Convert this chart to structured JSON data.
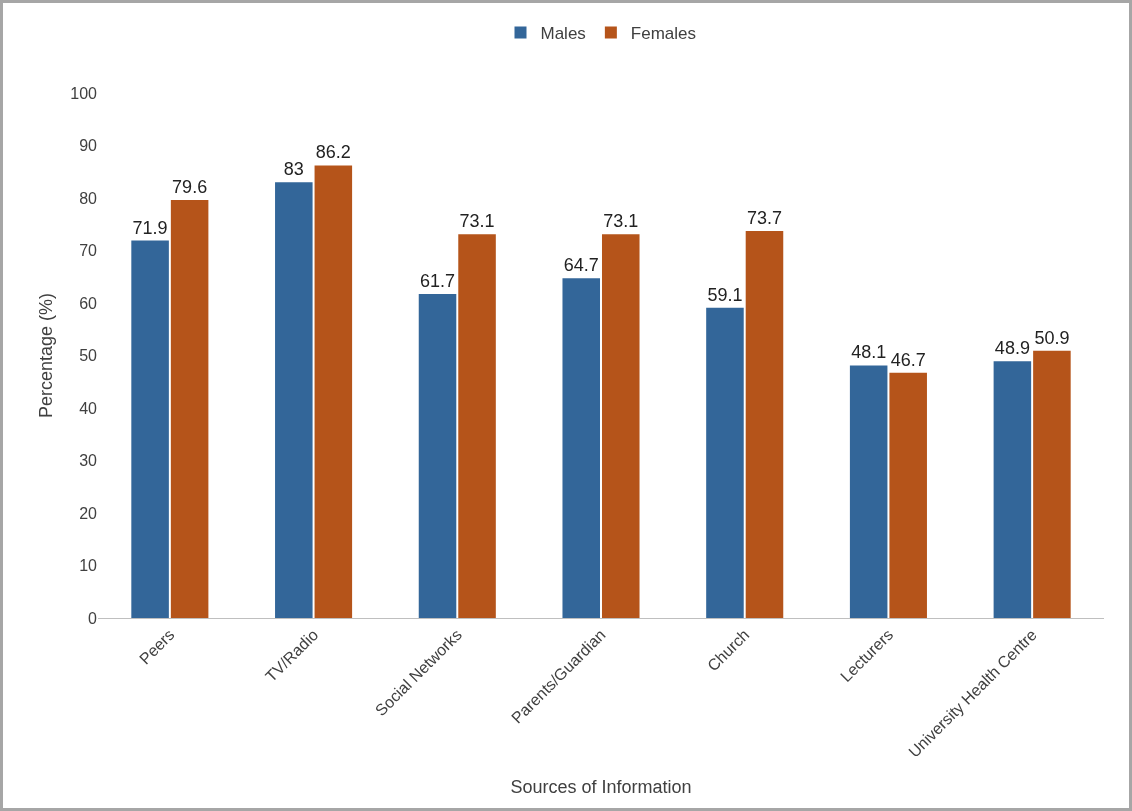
{
  "chart_data": {
    "type": "bar",
    "xlabel": "Sources of Information",
    "ylabel": "Percentage (%)",
    "categories": [
      "Peers",
      "TV/Radio",
      "Social Networks",
      "Parents/Guardian",
      "Church",
      "Lecturers",
      "University Health Centre"
    ],
    "series": [
      {
        "name": "Males",
        "color": "#336699",
        "values": [
          71.9,
          83,
          61.7,
          64.7,
          59.1,
          48.1,
          48.9
        ]
      },
      {
        "name": "Females",
        "color": "#b5541a",
        "values": [
          79.6,
          86.2,
          73.1,
          73.1,
          73.7,
          46.7,
          50.9
        ]
      }
    ],
    "ylim": [
      0,
      100
    ],
    "yticks": [
      0,
      10,
      20,
      30,
      40,
      50,
      60,
      70,
      80,
      90,
      100
    ],
    "grid": false,
    "legend": "top",
    "data_labels": true
  }
}
